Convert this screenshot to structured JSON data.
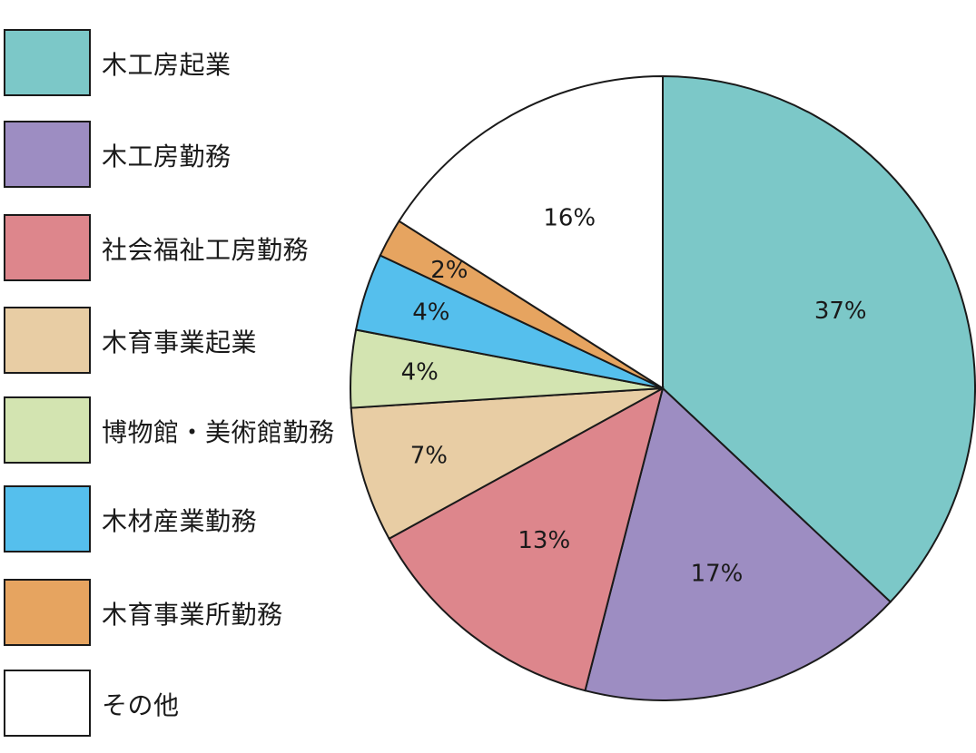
{
  "chart_data": {
    "type": "pie",
    "title": "",
    "start_angle_deg": 0,
    "direction": "clockwise",
    "legend_position": "left",
    "slices": [
      {
        "label": "木工房起業",
        "value": 37,
        "value_label": "37%",
        "color": "#7cc8c8"
      },
      {
        "label": "木工房勤務",
        "value": 17,
        "value_label": "17%",
        "color": "#9d8dc2"
      },
      {
        "label": "社会福祉工房勤務",
        "value": 13,
        "value_label": "13%",
        "color": "#dd868c"
      },
      {
        "label": "木育事業起業",
        "value": 7,
        "value_label": "7%",
        "color": "#e8cda4"
      },
      {
        "label": "博物館・美術館勤務",
        "value": 4,
        "value_label": "4%",
        "color": "#d3e4b1"
      },
      {
        "label": "木材産業勤務",
        "value": 4,
        "value_label": "4%",
        "color": "#55bfed"
      },
      {
        "label": "木育事業所勤務",
        "value": 2,
        "value_label": "2%",
        "color": "#e6a460"
      },
      {
        "label": "その他",
        "value": 16,
        "value_label": "16%",
        "color": "#ffffff"
      }
    ]
  }
}
